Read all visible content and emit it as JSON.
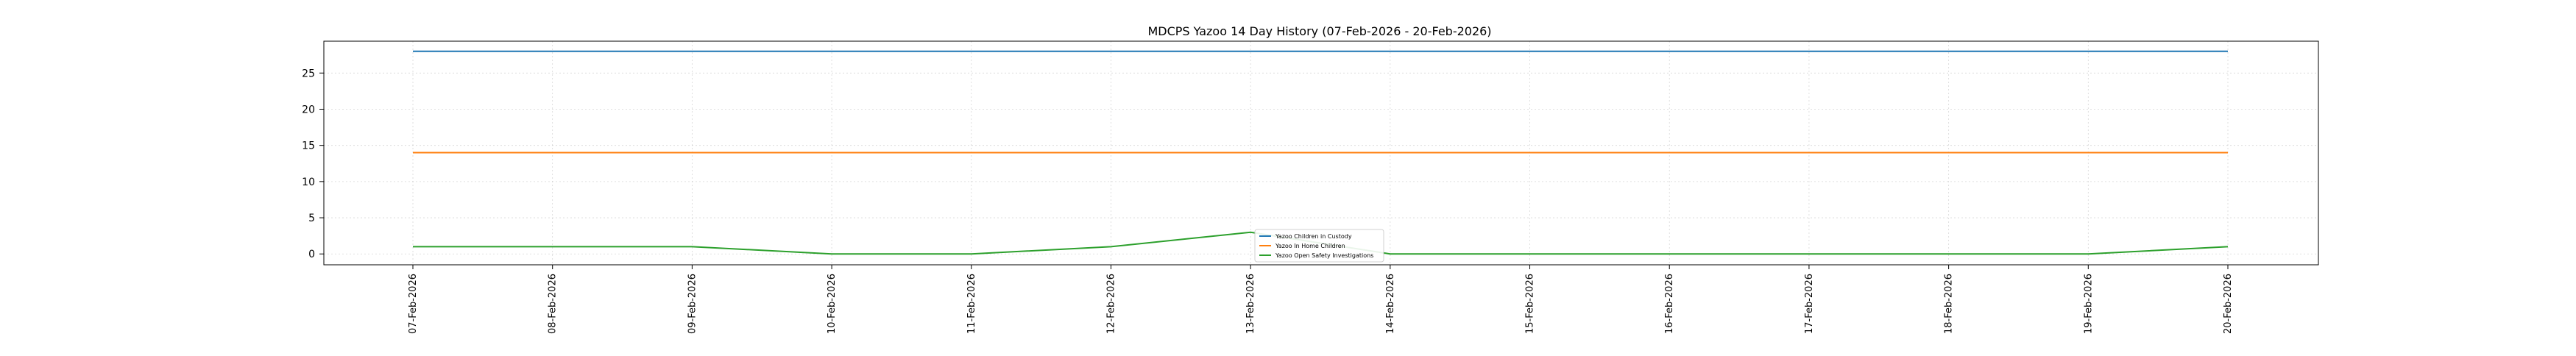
{
  "chart_data": {
    "type": "line",
    "title": "MDCPS Yazoo 14 Day History (07-Feb-2026 - 20-Feb-2026)",
    "xlabel": "",
    "ylabel": "",
    "x": [
      "07-Feb-2026",
      "08-Feb-2026",
      "09-Feb-2026",
      "10-Feb-2026",
      "11-Feb-2026",
      "12-Feb-2026",
      "13-Feb-2026",
      "14-Feb-2026",
      "15-Feb-2026",
      "16-Feb-2026",
      "17-Feb-2026",
      "18-Feb-2026",
      "19-Feb-2026",
      "20-Feb-2026"
    ],
    "ylim": [
      -1.5,
      29.4
    ],
    "yticks": [
      0,
      5,
      10,
      15,
      20,
      25
    ],
    "grid": true,
    "legend_position": "lower-center",
    "series": [
      {
        "name": "Yazoo Children in Custody",
        "color": "#1f77b4",
        "values": [
          28,
          28,
          28,
          28,
          28,
          28,
          28,
          28,
          28,
          28,
          28,
          28,
          28,
          28
        ]
      },
      {
        "name": "Yazoo In Home Children",
        "color": "#ff7f0e",
        "values": [
          14,
          14,
          14,
          14,
          14,
          14,
          14,
          14,
          14,
          14,
          14,
          14,
          14,
          14
        ]
      },
      {
        "name": "Yazoo Open Safety Investigations",
        "color": "#2ca02c",
        "values": [
          1,
          1,
          1,
          0,
          0,
          1,
          3,
          0,
          0,
          0,
          0,
          0,
          0,
          1
        ]
      }
    ]
  }
}
